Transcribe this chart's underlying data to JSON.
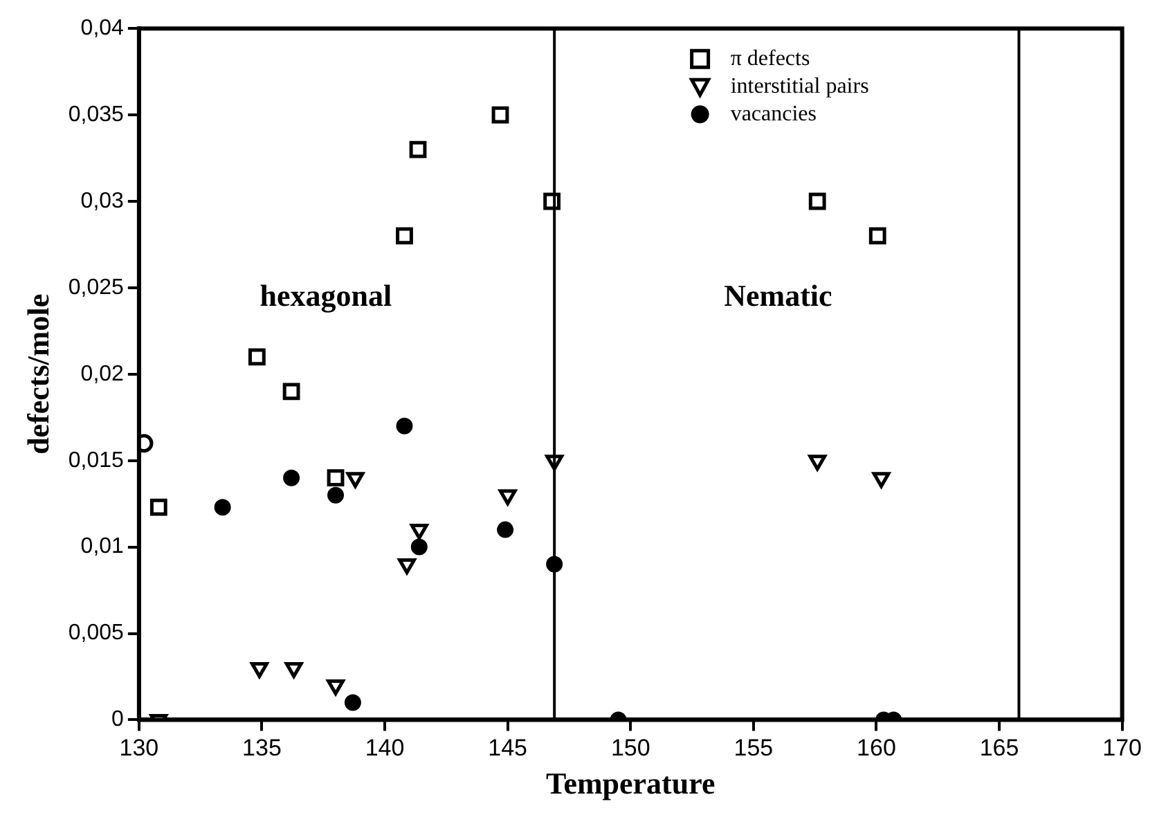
{
  "chart_data": {
    "type": "scatter",
    "xlabel": "Temperature",
    "ylabel": "defects/mole",
    "xlim": [
      130,
      170
    ],
    "xticks": [
      130,
      135,
      140,
      145,
      150,
      155,
      160,
      165,
      170
    ],
    "ylim": [
      0,
      0.04
    ],
    "yticks": [
      {
        "value": 0,
        "label": "0"
      },
      {
        "value": 0.005,
        "label": "0,005"
      },
      {
        "value": 0.01,
        "label": "0,01"
      },
      {
        "value": 0.015,
        "label": "0,015"
      },
      {
        "value": 0.02,
        "label": "0,02"
      },
      {
        "value": 0.025,
        "label": "0,025"
      },
      {
        "value": 0.03,
        "label": "0,03"
      },
      {
        "value": 0.035,
        "label": "0,035"
      },
      {
        "value": 0.04,
        "label": "0,04"
      }
    ],
    "grid": false,
    "legend": "top right",
    "series": [
      {
        "name": "π defects",
        "color": "#000000",
        "marker": "square",
        "x": [
          130.8,
          134.8,
          136.2,
          138.0,
          140.8,
          141.35,
          144.7,
          146.8,
          157.6,
          160.05
        ],
        "values": [
          0.0123,
          0.021,
          0.019,
          0.014,
          0.028,
          0.033,
          0.035,
          0.03,
          0.03,
          0.028
        ]
      },
      {
        "name": "interstitial pairs",
        "color": "#000000",
        "marker": "triangle",
        "x": [
          130.8,
          134.9,
          136.3,
          138.0,
          138.8,
          140.9,
          141.4,
          145.0,
          146.9,
          157.6,
          160.2
        ],
        "values": [
          0,
          0.003,
          0.003,
          0.002,
          0.014,
          0.009,
          0.011,
          0.013,
          0.015,
          0.015,
          0.014
        ]
      },
      {
        "name": "vacancies",
        "color": "#000000",
        "marker": "circle",
        "x": [
          133.4,
          136.2,
          138.0,
          138.7,
          140.8,
          141.4,
          144.9,
          146.9,
          149.5,
          160.3,
          160.7
        ],
        "values": [
          0.0123,
          0.014,
          0.013,
          0.001,
          0.017,
          0.01,
          0.011,
          0.009,
          0,
          0,
          0
        ]
      },
      {
        "color": "#000000",
        "marker": "circle",
        "x": [
          130.2
        ],
        "values": [
          0.016
        ]
      }
    ],
    "ref_lines": [
      {
        "axis": "x",
        "value": 146.9,
        "color": "#000000"
      },
      {
        "axis": "x",
        "value": 165.8,
        "color": "#000000"
      }
    ],
    "annotations": [
      "hexagonal",
      "Nematic"
    ]
  }
}
